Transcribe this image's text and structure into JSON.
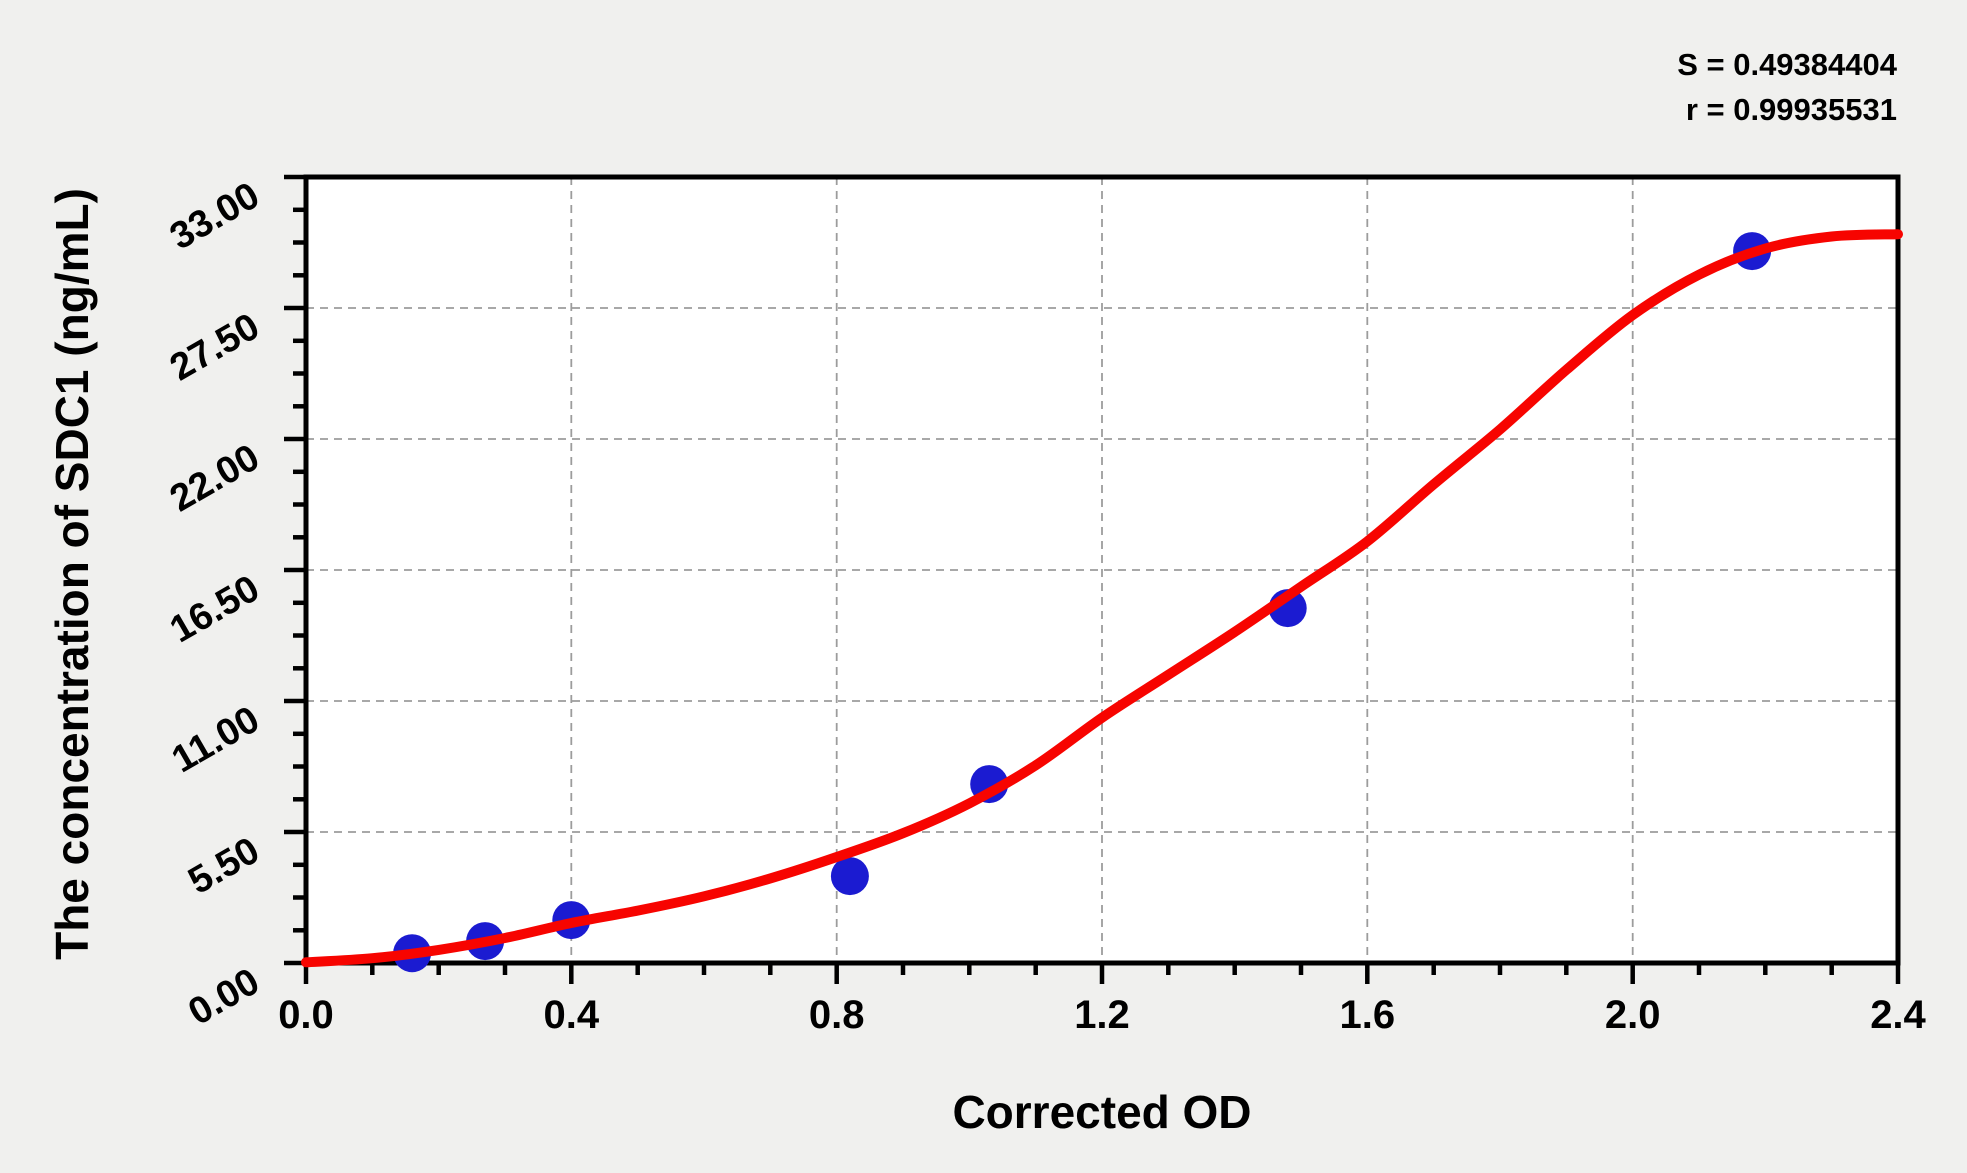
{
  "page": {
    "background": "#f0f0ee",
    "plot_background": "#ffffff",
    "frame_color": "#000000",
    "grid_color": "#9c9c9c",
    "text_color": "#000000"
  },
  "stats_box": {
    "s_text": "S = 0.49384404",
    "r_text": "r = 0.99935531"
  },
  "chart_data": {
    "type": "scatter",
    "title": "",
    "xlabel": "Corrected OD",
    "ylabel": "The concentration of SDC1 (ng/mL)",
    "grid": "dashed",
    "legend": "none",
    "fit_stats": {
      "S": 0.49384404,
      "r": 0.99935531
    },
    "x_axis": {
      "range": [
        0,
        2.4
      ],
      "major_ticks": [
        0,
        0.4,
        0.8,
        1.2,
        1.6,
        2.0,
        2.4
      ],
      "tick_labels": [
        "0.0",
        "0.4",
        "0.8",
        "1.2",
        "1.6",
        "2.0",
        "2.4"
      ],
      "minor_tick_step": 0.1,
      "gridline_values": [
        0.4,
        0.8,
        1.2,
        1.6,
        2.0
      ]
    },
    "y_axis": {
      "range": [
        0,
        33
      ],
      "major_ticks": [
        0,
        5.5,
        11,
        16.5,
        22,
        27.5,
        33
      ],
      "tick_labels": [
        "0.00",
        "5.50",
        "11.00",
        "16.50",
        "22.00",
        "27.50",
        "33.00"
      ],
      "minor_tick_step": 1.375,
      "gridline_values": [
        5.5,
        11,
        16.5,
        22,
        27.5
      ]
    },
    "series": [
      {
        "name": "standard-points",
        "type": "scatter",
        "color": "#1b1bd1",
        "marker": "circle",
        "points": [
          [
            0.16,
            0.41
          ],
          [
            0.27,
            0.92
          ],
          [
            0.4,
            1.8
          ],
          [
            0.82,
            3.65
          ],
          [
            1.03,
            7.51
          ],
          [
            1.48,
            14.9
          ],
          [
            2.18,
            29.89
          ]
        ]
      },
      {
        "name": "4pl-fit-curve",
        "type": "line",
        "color": "#f70400",
        "points": [
          [
            0.0,
            0.03
          ],
          [
            0.1,
            0.2
          ],
          [
            0.2,
            0.55
          ],
          [
            0.3,
            1.05
          ],
          [
            0.4,
            1.68
          ],
          [
            0.5,
            2.2
          ],
          [
            0.6,
            2.8
          ],
          [
            0.7,
            3.55
          ],
          [
            0.8,
            4.45
          ],
          [
            0.9,
            5.45
          ],
          [
            1.0,
            6.7
          ],
          [
            1.1,
            8.3
          ],
          [
            1.2,
            10.3
          ],
          [
            1.3,
            12.1
          ],
          [
            1.4,
            13.9
          ],
          [
            1.5,
            15.8
          ],
          [
            1.6,
            17.7
          ],
          [
            1.7,
            20.1
          ],
          [
            1.8,
            22.4
          ],
          [
            1.9,
            24.9
          ],
          [
            2.0,
            27.2
          ],
          [
            2.1,
            28.9
          ],
          [
            2.2,
            30.0
          ],
          [
            2.3,
            30.5
          ],
          [
            2.4,
            30.6
          ]
        ]
      }
    ]
  }
}
